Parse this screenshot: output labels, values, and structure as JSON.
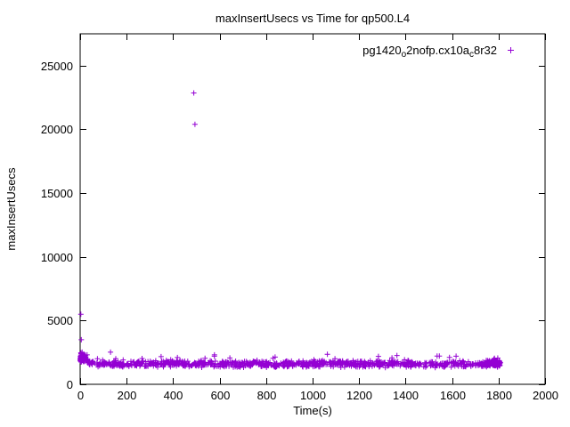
{
  "chart_data": {
    "type": "scatter",
    "title": "maxInsertUsecs vs Time for qp500.L4",
    "xlabel": "Time(s)",
    "ylabel": "maxInsertUsecs",
    "xlim": [
      0,
      2000
    ],
    "ylim": [
      0,
      27500
    ],
    "xtick_step": 200,
    "ytick_step": 5000,
    "ytick_label_max": 25000,
    "grid": false,
    "legend": {
      "position": "top-right-inside",
      "marker": "plus",
      "label": "pg1420_o2nofp.cx10a_c8r32",
      "label_parts": [
        {
          "t": "pg1420"
        },
        {
          "t": "o",
          "sub": true
        },
        {
          "t": "2nofp.cx10a"
        },
        {
          "t": "c",
          "sub": true
        },
        {
          "t": "8r32"
        }
      ]
    },
    "series": [
      {
        "name": "pg1420_o2nofp.cx10a_c8r32",
        "color": "#9400D3",
        "marker": "plus",
        "outliers": [
          [
            3,
            5500
          ],
          [
            5,
            3500
          ],
          [
            489,
            22857
          ],
          [
            494,
            20400
          ]
        ],
        "bands": [
          {
            "x0": 0,
            "x1": 1808,
            "count": 950,
            "base_floor": 1600,
            "base_extra": 550,
            "decay": 35,
            "noise": 300,
            "spike_chance": 0.05,
            "spike_max": 700,
            "seed": 1337
          },
          {
            "x0": 0,
            "x1": 25,
            "count": 90,
            "base_floor": 2050,
            "base_extra": 0,
            "decay": 35,
            "noise": 350,
            "spike_chance": 0.08,
            "spike_max": 500,
            "seed": 77
          },
          {
            "x0": 1745,
            "x1": 1808,
            "count": 140,
            "base_floor": 1650,
            "base_extra": 0,
            "decay": 35,
            "noise": 250,
            "spike_chance": 0.05,
            "spike_max": 400,
            "seed": 2024
          }
        ],
        "band_summary": "Dense band of samples ~1100-2200 usecs from t=0s to t=1800s, settling near ~1600 usecs after an initial decay from ~2200"
      }
    ]
  }
}
